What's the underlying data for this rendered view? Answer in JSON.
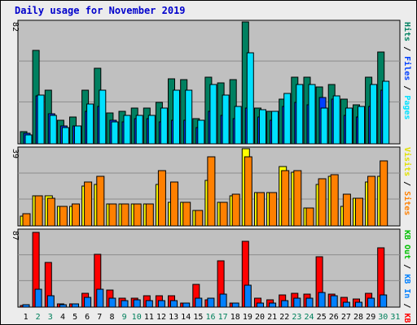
{
  "page": {
    "background": "#ececec",
    "plot_background": "#c0c0c0"
  },
  "chart_data": {
    "title": "Daily usage for November 2019",
    "categories": [
      "1",
      "2",
      "3",
      "4",
      "5",
      "6",
      "7",
      "8",
      "9",
      "10",
      "11",
      "12",
      "13",
      "14",
      "15",
      "16",
      "17",
      "18",
      "19",
      "20",
      "21",
      "22",
      "23",
      "24",
      "25",
      "26",
      "27",
      "28",
      "29",
      "30",
      "31"
    ],
    "weekend_days": [
      "2",
      "3",
      "9",
      "10",
      "16",
      "17",
      "23",
      "24",
      "30",
      "31"
    ],
    "weekend_color": "#00805c",
    "weekday_color": "#000000",
    "panels": [
      {
        "type": "bar",
        "ymax_label": "82",
        "ylim": [
          0,
          82
        ],
        "series": [
          {
            "name": "Hits",
            "color": "#008060",
            "values": [
              8,
              63,
              36,
              16,
              18,
              36,
              51,
              21,
              22,
              24,
              24,
              28,
              44,
              43,
              17,
              45,
              41,
              43,
              82,
              24,
              22,
              30,
              45,
              45,
              38,
              40,
              30,
              26,
              45,
              62,
              0
            ]
          },
          {
            "name": "Files",
            "color": "#0040ff",
            "values": [
              7,
              32,
              20,
              12,
              12,
              22,
              25,
              16,
              15,
              17,
              17,
              15,
              16,
              16,
              11,
              22,
              19,
              17,
              24,
              18,
              16,
              25,
              28,
              26,
              31,
              30,
              19,
              18,
              25,
              36,
              0
            ]
          },
          {
            "name": "Pages",
            "color": "#00e0ff",
            "values": [
              6,
              33,
              19,
              11,
              12,
              27,
              36,
              15,
              19,
              19,
              19,
              24,
              36,
              36,
              16,
              40,
              33,
              25,
              61,
              23,
              22,
              34,
              40,
              40,
              24,
              32,
              24,
              25,
              40,
              42,
              0
            ]
          }
        ]
      },
      {
        "type": "bar",
        "ymax_label": "39",
        "ylim": [
          0,
          39
        ],
        "series": [
          {
            "name": "Visits",
            "color": "#ffff00",
            "values": [
              5,
              15,
              15,
              10,
              10,
              20,
              21,
              11,
              11,
              11,
              11,
              21,
              12,
              12,
              8,
              23,
              12,
              15,
              39,
              17,
              17,
              30,
              27,
              9,
              21,
              25,
              10,
              14,
              22,
              25,
              0
            ]
          },
          {
            "name": "Sites",
            "color": "#ff8000",
            "values": [
              6,
              15,
              14,
              10,
              11,
              22,
              25,
              11,
              11,
              11,
              11,
              28,
              22,
              12,
              8,
              35,
              12,
              16,
              35,
              17,
              17,
              28,
              28,
              9,
              24,
              26,
              16,
              14,
              25,
              33,
              0
            ]
          }
        ]
      },
      {
        "type": "bar",
        "ymax_label": "87",
        "ylim": [
          0,
          87
        ],
        "series": [
          {
            "name": "KB F",
            "color": "#ff0000",
            "values": [
              2,
              85,
              51,
              4,
              4,
              16,
              60,
              19,
              10,
              10,
              13,
              13,
              13,
              5,
              26,
              8,
              53,
              5,
              75,
              10,
              8,
              14,
              16,
              15,
              57,
              15,
              11,
              9,
              16,
              68,
              0
            ]
          },
          {
            "name": "KB In",
            "color": "#0080ff",
            "values": [
              3,
              20,
              13,
              3,
              4,
              11,
              20,
              10,
              7,
              8,
              7,
              7,
              7,
              5,
              10,
              10,
              15,
              5,
              25,
              5,
              5,
              7,
              10,
              10,
              17,
              13,
              6,
              6,
              10,
              14,
              0
            ]
          },
          {
            "name": "KB Out",
            "color": "#00c000",
            "values": [
              0,
              0,
              0,
              0,
              0,
              0,
              0,
              0,
              0,
              0,
              0,
              0,
              0,
              0,
              0,
              0,
              0,
              0,
              0,
              0,
              0,
              0,
              0,
              0,
              0,
              0,
              0,
              0,
              0,
              0,
              0
            ]
          }
        ]
      }
    ],
    "legend": {
      "top": [
        {
          "text": "Hits",
          "color": "#008060"
        },
        {
          "text": " / ",
          "color": "#000000"
        },
        {
          "text": "Files",
          "color": "#0040ff"
        },
        {
          "text": " / ",
          "color": "#000000"
        },
        {
          "text": "Pages",
          "color": "#00e0ff"
        }
      ],
      "middle": [
        {
          "text": "Visits",
          "color": "#e0e000"
        },
        {
          "text": " / ",
          "color": "#000000"
        },
        {
          "text": "Sites",
          "color": "#ff8000"
        }
      ],
      "bottom": [
        {
          "text": "KB Out",
          "color": "#00c000"
        },
        {
          "text": " / ",
          "color": "#000000"
        },
        {
          "text": "KB In",
          "color": "#0080ff"
        },
        {
          "text": " / ",
          "color": "#000000"
        },
        {
          "text": "KB F",
          "color": "#ff0000"
        }
      ]
    }
  }
}
